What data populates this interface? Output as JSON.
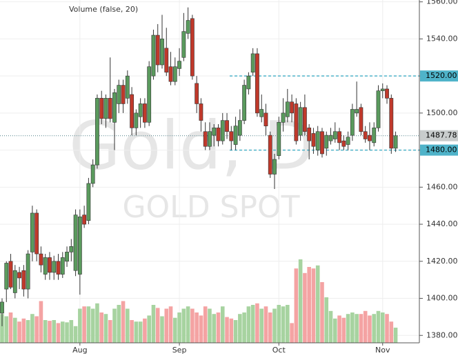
{
  "chart_data": {
    "type": "candlestick",
    "legend_text": "Volume (false, 20)",
    "watermark": "Gold, D",
    "watermark_sub": "GOLD SPOT",
    "categories": [
      null,
      null,
      null,
      null,
      null,
      null,
      null,
      null,
      null,
      null,
      null,
      null,
      null,
      null,
      null,
      null,
      null,
      null,
      "Aug",
      null,
      null,
      null,
      null,
      null,
      null,
      null,
      null,
      null,
      null,
      null,
      null,
      null,
      null,
      null,
      null,
      null,
      null,
      null,
      null,
      null,
      null,
      "Sep",
      null,
      null,
      null,
      null,
      null,
      null,
      null,
      null,
      null,
      null,
      null,
      null,
      null,
      null,
      null,
      null,
      null,
      null,
      null,
      null,
      null,
      null,
      "Oct",
      null,
      null,
      null,
      null,
      null,
      null,
      null,
      null,
      null,
      null,
      null,
      null,
      null,
      null,
      null,
      null,
      null,
      null,
      null,
      null,
      null,
      null,
      null,
      "Nov",
      null,
      null,
      null
    ],
    "open": [
      1392,
      1405,
      1420,
      1403,
      1414,
      1415,
      1405,
      1425,
      1446,
      1424,
      1413,
      1422,
      1414,
      1420,
      1413,
      1420,
      1425,
      1415,
      1413,
      1445,
      1442,
      1462,
      1472,
      1508,
      1497,
      1508,
      1495,
      1505,
      1515,
      1508,
      1510,
      1492,
      1498,
      1505,
      1495,
      1520,
      1542,
      1526,
      1535,
      1525,
      1517,
      1524,
      1530,
      1543,
      1551,
      1516,
      1505,
      1490,
      1482,
      1488,
      1492,
      1485,
      1496,
      1490,
      1483,
      1488,
      1496,
      1513,
      1522,
      1532,
      1498,
      1500,
      1488,
      1467,
      1477,
      1495,
      1498,
      1506,
      1505,
      1488,
      1503,
      1492,
      1489,
      1480,
      1490,
      1481,
      1485,
      1486,
      1490,
      1485,
      1483,
      1488,
      1500,
      1503,
      1490,
      1488,
      1484,
      1492,
      1512,
      1513,
      1508,
      1481
    ],
    "high": [
      1400,
      1420,
      1424,
      1418,
      1417,
      1418,
      1426,
      1450,
      1448,
      1428,
      1424,
      1425,
      1423,
      1424,
      1425,
      1428,
      1432,
      1448,
      1448,
      1450,
      1465,
      1475,
      1510,
      1512,
      1510,
      1530,
      1513,
      1518,
      1518,
      1523,
      1514,
      1502,
      1508,
      1508,
      1528,
      1545,
      1548,
      1553,
      1546,
      1533,
      1530,
      1535,
      1554,
      1557,
      1553,
      1520,
      1508,
      1495,
      1495,
      1494,
      1494,
      1500,
      1500,
      1493,
      1498,
      1502,
      1518,
      1522,
      1535,
      1535,
      1510,
      1505,
      1490,
      1478,
      1498,
      1508,
      1513,
      1510,
      1508,
      1506,
      1510,
      1494,
      1492,
      1493,
      1492,
      1490,
      1492,
      1495,
      1492,
      1488,
      1490,
      1505,
      1517,
      1505,
      1493,
      1495,
      1495,
      1515,
      1516,
      1515,
      1510,
      1490
    ],
    "low": [
      1385,
      1398,
      1405,
      1400,
      1405,
      1401,
      1400,
      1420,
      1420,
      1414,
      1410,
      1410,
      1410,
      1410,
      1411,
      1417,
      1420,
      1412,
      1402,
      1438,
      1440,
      1460,
      1470,
      1494,
      1492,
      1495,
      1480,
      1500,
      1500,
      1505,
      1488,
      1488,
      1492,
      1492,
      1493,
      1518,
      1522,
      1524,
      1520,
      1515,
      1515,
      1520,
      1528,
      1540,
      1518,
      1500,
      1490,
      1480,
      1480,
      1482,
      1482,
      1483,
      1486,
      1480,
      1480,
      1485,
      1494,
      1510,
      1520,
      1498,
      1495,
      1488,
      1465,
      1459,
      1475,
      1490,
      1495,
      1495,
      1483,
      1485,
      1488,
      1475,
      1478,
      1477,
      1476,
      1477,
      1483,
      1484,
      1480,
      1480,
      1480,
      1485,
      1498,
      1488,
      1484,
      1480,
      1482,
      1490,
      1508,
      1505,
      1478,
      1479
    ],
    "close": [
      1398,
      1419,
      1406,
      1415,
      1411,
      1405,
      1424,
      1446,
      1424,
      1418,
      1422,
      1414,
      1420,
      1413,
      1422,
      1425,
      1428,
      1445,
      1444,
      1440,
      1462,
      1472,
      1508,
      1497,
      1508,
      1497,
      1511,
      1515,
      1505,
      1520,
      1492,
      1500,
      1505,
      1495,
      1525,
      1542,
      1526,
      1540,
      1522,
      1517,
      1525,
      1528,
      1544,
      1550,
      1520,
      1505,
      1496,
      1482,
      1490,
      1492,
      1485,
      1496,
      1490,
      1485,
      1493,
      1496,
      1515,
      1520,
      1532,
      1500,
      1502,
      1493,
      1467,
      1475,
      1495,
      1500,
      1506,
      1500,
      1485,
      1503,
      1490,
      1485,
      1482,
      1490,
      1478,
      1488,
      1488,
      1490,
      1484,
      1482,
      1487,
      1502,
      1502,
      1490,
      1486,
      1485,
      1492,
      1512,
      1513,
      1508,
      1481,
      1487.78
    ],
    "volume": [
      38,
      35,
      40,
      33,
      28,
      32,
      30,
      38,
      35,
      55,
      30,
      29,
      30,
      26,
      28,
      27,
      30,
      22,
      45,
      48,
      48,
      45,
      52,
      40,
      38,
      30,
      45,
      50,
      55,
      45,
      30,
      28,
      28,
      32,
      36,
      50,
      46,
      35,
      45,
      48,
      33,
      40,
      45,
      48,
      45,
      40,
      36,
      48,
      45,
      38,
      40,
      48,
      34,
      32,
      30,
      38,
      40,
      48,
      50,
      52,
      45,
      48,
      40,
      45,
      50,
      48,
      50,
      26,
      98,
      110,
      92,
      100,
      98,
      102,
      80,
      60,
      42,
      32,
      36,
      33,
      38,
      40,
      38,
      38,
      42,
      36,
      38,
      42,
      40,
      38,
      28,
      20
    ],
    "up_color": "#5a9a5d",
    "down_color": "#c0392b",
    "volume_up_color": "#a7d3a0",
    "volume_down_color": "#f4a3a3",
    "ylim": [
      1376,
      1561
    ],
    "yticks": [
      {
        "value": 1380,
        "label": "1380.00"
      },
      {
        "value": 1400,
        "label": "1400.00"
      },
      {
        "value": 1420,
        "label": "1420.00"
      },
      {
        "value": 1440,
        "label": "1440.00"
      },
      {
        "value": 1460,
        "label": "1460.00"
      },
      {
        "value": 1480,
        "label": "1480.00"
      },
      {
        "value": 1500,
        "label": "1500.00"
      },
      {
        "value": 1520,
        "label": "1520.00"
      },
      {
        "value": 1540,
        "label": "1540.00"
      },
      {
        "value": 1560,
        "label": "1560.00"
      }
    ],
    "levels": [
      {
        "value": 1520,
        "label": "1520.00"
      },
      {
        "value": 1480,
        "label": "1480.00"
      }
    ],
    "level_color": "#4fb3c9",
    "last_price": {
      "value": 1487.78,
      "label": "1487.78"
    },
    "grid": true
  }
}
